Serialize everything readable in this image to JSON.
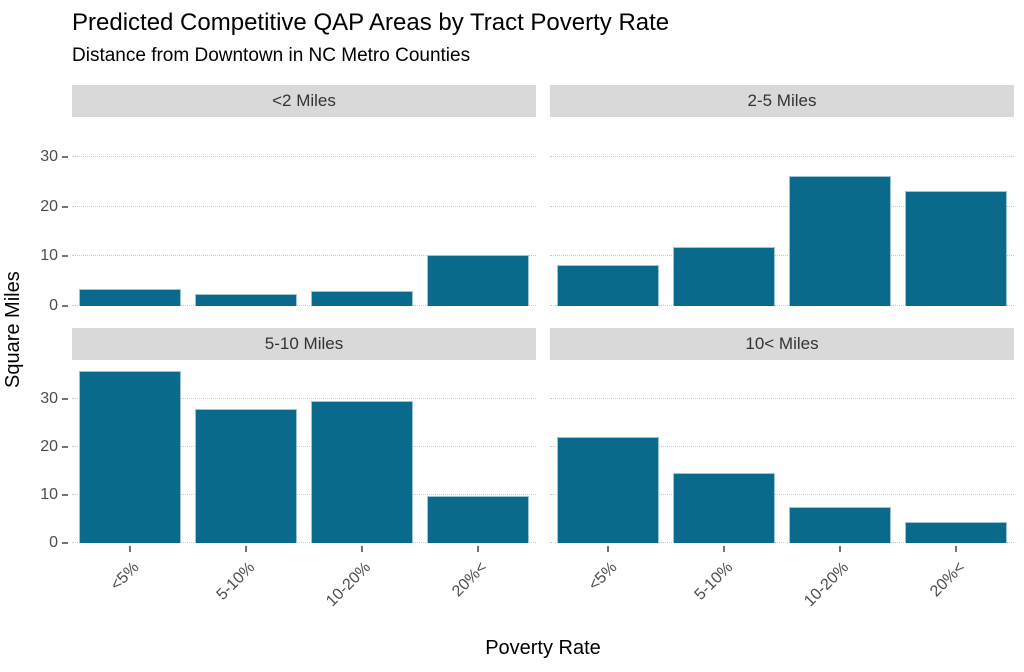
{
  "page": {
    "background": "#ffffff"
  },
  "chart_data": {
    "type": "bar",
    "title": "Predicted Competitive QAP Areas by Tract Poverty Rate",
    "subtitle": "Distance from Downtown in NC Metro Counties",
    "xlabel": "Poverty Rate",
    "ylabel": "Square Miles",
    "categories": [
      "<5%",
      "5-10%",
      "10-20%",
      "20%<"
    ],
    "yticks": [
      0,
      10,
      20,
      30
    ],
    "ylim": [
      0,
      38
    ],
    "legend": "none",
    "grid": "horizontal-dotted",
    "bar_color": "#0a6a8c",
    "bar_border_color": "#9cc4d4",
    "strip_bg": "#d9d9d9",
    "facets": [
      {
        "label": "<2 Miles",
        "values": [
          3.4,
          2.5,
          3.1,
          10.3
        ]
      },
      {
        "label": "2-5 Miles",
        "values": [
          8.3,
          11.9,
          26.1,
          23.2
        ]
      },
      {
        "label": "5-10 Miles",
        "values": [
          35.8,
          27.8,
          29.5,
          9.7
        ]
      },
      {
        "label": "10< Miles",
        "values": [
          22.0,
          14.6,
          7.5,
          4.3
        ]
      }
    ]
  }
}
